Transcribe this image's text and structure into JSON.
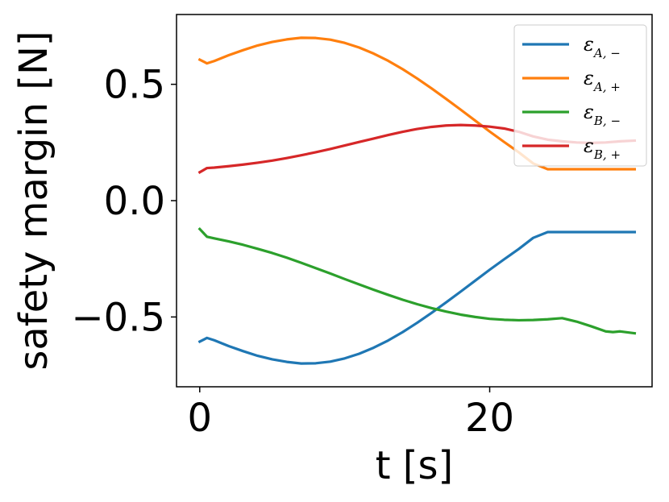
{
  "chart_data": {
    "type": "line",
    "xlabel": "t [s]",
    "ylabel": "safety margin [N]",
    "xlim": [
      -1.6,
      31.2
    ],
    "ylim": [
      -0.8,
      0.8
    ],
    "xticks": [
      0,
      20
    ],
    "xtick_labels": [
      "0",
      "20"
    ],
    "yticks": [
      -0.5,
      0.0,
      0.5
    ],
    "ytick_labels": [
      "−0.5",
      "0.0",
      "0.5"
    ],
    "grid": false,
    "legend_position": "top-right",
    "series": [
      {
        "name_main": "ε",
        "name_sub": "A, −",
        "color": "#1f77b4",
        "x": [
          0,
          0.5,
          1,
          2,
          3,
          4,
          5,
          6,
          7,
          8,
          9,
          10,
          11,
          12,
          13,
          14,
          15,
          16,
          17,
          18,
          19,
          20,
          21,
          22,
          23,
          24,
          25,
          26,
          27,
          28,
          29,
          30
        ],
        "y": [
          -0.606,
          -0.59,
          -0.6,
          -0.625,
          -0.647,
          -0.667,
          -0.682,
          -0.693,
          -0.7,
          -0.699,
          -0.692,
          -0.678,
          -0.658,
          -0.632,
          -0.601,
          -0.565,
          -0.525,
          -0.482,
          -0.437,
          -0.391,
          -0.344,
          -0.297,
          -0.252,
          -0.208,
          -0.16,
          -0.135,
          -0.135,
          -0.135,
          -0.135,
          -0.135,
          -0.135,
          -0.135
        ]
      },
      {
        "name_main": "ε",
        "name_sub": "A, +",
        "color": "#ff7f0e",
        "x": [
          0,
          0.5,
          1,
          2,
          3,
          4,
          5,
          6,
          7,
          8,
          9,
          10,
          11,
          12,
          13,
          14,
          15,
          16,
          17,
          18,
          19,
          20,
          21,
          22,
          23,
          24,
          25,
          26,
          27,
          28,
          29,
          30
        ],
        "y": [
          0.606,
          0.59,
          0.6,
          0.625,
          0.647,
          0.667,
          0.682,
          0.693,
          0.7,
          0.699,
          0.692,
          0.678,
          0.658,
          0.632,
          0.601,
          0.565,
          0.525,
          0.482,
          0.437,
          0.391,
          0.344,
          0.297,
          0.252,
          0.208,
          0.16,
          0.135,
          0.135,
          0.135,
          0.135,
          0.135,
          0.135,
          0.135
        ]
      },
      {
        "name_main": "ε",
        "name_sub": "B, −",
        "color": "#2ca02c",
        "x": [
          0,
          0.5,
          1,
          2,
          3,
          4,
          5,
          6,
          7,
          8,
          9,
          10,
          11,
          12,
          13,
          14,
          15,
          16,
          17,
          18,
          19,
          20,
          21,
          22,
          23,
          24,
          25,
          26,
          27,
          28,
          28.5,
          29,
          30
        ],
        "y": [
          -0.122,
          -0.155,
          -0.162,
          -0.175,
          -0.19,
          -0.207,
          -0.225,
          -0.245,
          -0.267,
          -0.29,
          -0.313,
          -0.337,
          -0.36,
          -0.383,
          -0.405,
          -0.426,
          -0.445,
          -0.462,
          -0.477,
          -0.49,
          -0.5,
          -0.508,
          -0.512,
          -0.514,
          -0.513,
          -0.51,
          -0.505,
          -0.52,
          -0.54,
          -0.562,
          -0.565,
          -0.562,
          -0.57
        ]
      },
      {
        "name_main": "ε",
        "name_sub": "B, +",
        "color": "#d62728",
        "x": [
          0,
          0.5,
          1,
          2,
          3,
          4,
          5,
          6,
          7,
          8,
          9,
          10,
          11,
          12,
          13,
          14,
          15,
          16,
          17,
          18,
          19,
          20,
          21,
          22,
          23,
          24,
          25,
          26,
          27,
          28,
          29,
          30
        ],
        "y": [
          0.122,
          0.14,
          0.142,
          0.148,
          0.155,
          0.163,
          0.172,
          0.183,
          0.195,
          0.208,
          0.222,
          0.237,
          0.252,
          0.267,
          0.282,
          0.296,
          0.308,
          0.317,
          0.323,
          0.325,
          0.323,
          0.318,
          0.31,
          0.296,
          0.276,
          0.262,
          0.255,
          0.25,
          0.248,
          0.25,
          0.255,
          0.258
        ]
      }
    ]
  }
}
